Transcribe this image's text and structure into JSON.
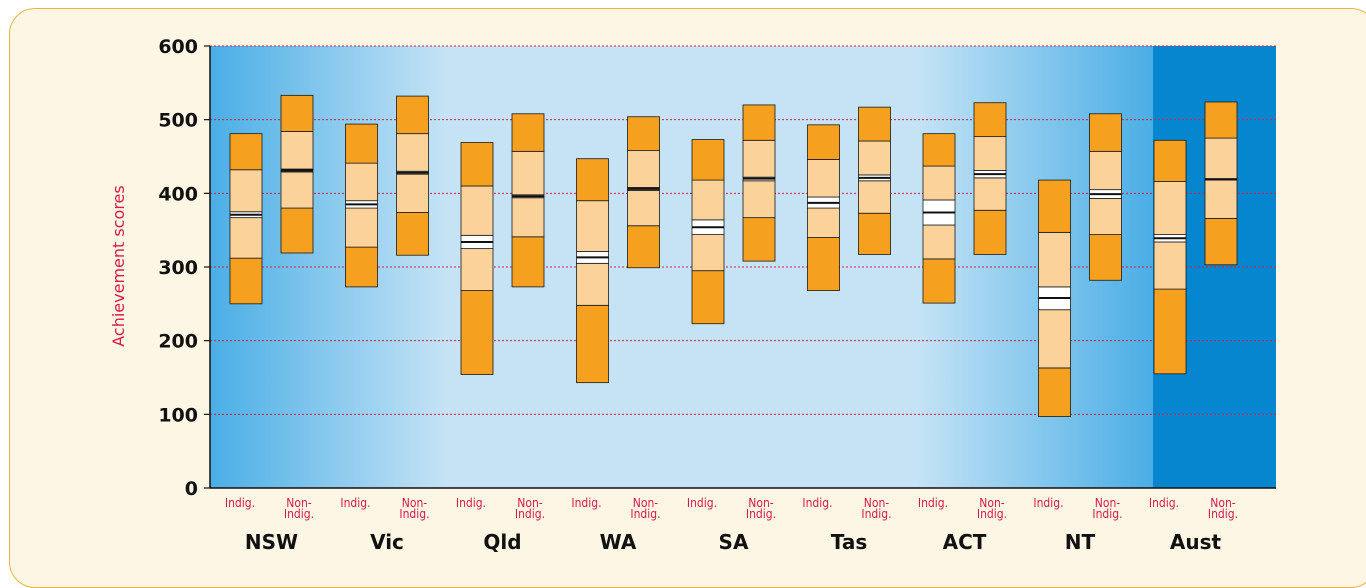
{
  "chart_data": {
    "type": "box",
    "ylabel": "Achievement scores",
    "ylim": [
      0,
      600
    ],
    "yticks": [
      0,
      100,
      200,
      300,
      400,
      500,
      600
    ],
    "groups": [
      "NSW",
      "Vic",
      "Qld",
      "WA",
      "SA",
      "Tas",
      "ACT",
      "NT",
      "Aust"
    ],
    "series": [
      {
        "name": "Indig.",
        "label_lines": [
          "Indig."
        ],
        "values": [
          {
            "p5": 250,
            "p25": 312,
            "ci_low": 367,
            "mean": 371,
            "ci_high": 375,
            "p75": 432,
            "p95": 481
          },
          {
            "p5": 273,
            "p25": 327,
            "ci_low": 380,
            "mean": 385,
            "ci_high": 390,
            "p75": 441,
            "p95": 494
          },
          {
            "p5": 154,
            "p25": 268,
            "ci_low": 325,
            "mean": 334,
            "ci_high": 343,
            "p75": 410,
            "p95": 469
          },
          {
            "p5": 143,
            "p25": 248,
            "ci_low": 305,
            "mean": 313,
            "ci_high": 321,
            "p75": 390,
            "p95": 447
          },
          {
            "p5": 223,
            "p25": 295,
            "ci_low": 344,
            "mean": 354,
            "ci_high": 364,
            "p75": 418,
            "p95": 473
          },
          {
            "p5": 268,
            "p25": 340,
            "ci_low": 380,
            "mean": 387,
            "ci_high": 395,
            "p75": 446,
            "p95": 493
          },
          {
            "p5": 251,
            "p25": 311,
            "ci_low": 357,
            "mean": 374,
            "ci_high": 391,
            "p75": 437,
            "p95": 481
          },
          {
            "p5": 97,
            "p25": 163,
            "ci_low": 242,
            "mean": 258,
            "ci_high": 273,
            "p75": 347,
            "p95": 418
          },
          {
            "p5": 155,
            "p25": 270,
            "ci_low": 334,
            "mean": 339,
            "ci_high": 344,
            "p75": 416,
            "p95": 472
          }
        ]
      },
      {
        "name": "Non-Indig.",
        "label_lines": [
          "Non-",
          "Indig."
        ],
        "values": [
          {
            "p5": 319,
            "p25": 380,
            "ci_low": 429,
            "mean": 431,
            "ci_high": 433,
            "p75": 484,
            "p95": 533
          },
          {
            "p5": 316,
            "p25": 374,
            "ci_low": 426,
            "mean": 428,
            "ci_high": 430,
            "p75": 481,
            "p95": 532
          },
          {
            "p5": 273,
            "p25": 341,
            "ci_low": 394,
            "mean": 396,
            "ci_high": 398,
            "p75": 457,
            "p95": 508
          },
          {
            "p5": 299,
            "p25": 356,
            "ci_low": 404,
            "mean": 406,
            "ci_high": 408,
            "p75": 458,
            "p95": 504
          },
          {
            "p5": 308,
            "p25": 367,
            "ci_low": 417,
            "mean": 420,
            "ci_high": 422,
            "p75": 472,
            "p95": 520
          },
          {
            "p5": 317,
            "p25": 373,
            "ci_low": 417,
            "mean": 421,
            "ci_high": 425,
            "p75": 471,
            "p95": 517
          },
          {
            "p5": 317,
            "p25": 377,
            "ci_low": 421,
            "mean": 426,
            "ci_high": 431,
            "p75": 477,
            "p95": 523
          },
          {
            "p5": 282,
            "p25": 344,
            "ci_low": 393,
            "mean": 399,
            "ci_high": 405,
            "p75": 457,
            "p95": 508
          },
          {
            "p5": 303,
            "p25": 366,
            "ci_low": 418,
            "mean": 419,
            "ci_high": 420,
            "p75": 475,
            "p95": 524
          }
        ]
      }
    ],
    "grid": true,
    "highlighted_group": "Aust",
    "colors": {
      "outer_band": "#f5a01e",
      "inner_band": "#fbd29a",
      "mean_line": "#111111",
      "ci_fill": "#ffffff",
      "gridline": "#c8214a",
      "plot_bg_light": "#c5e3f5",
      "plot_bg_dark": "#4aaee6",
      "highlight_bg": "#0786d0",
      "frame_bg": "#fdf6e4",
      "frame_border": "#f0b040",
      "ylabel_color": "#d6194b"
    }
  }
}
